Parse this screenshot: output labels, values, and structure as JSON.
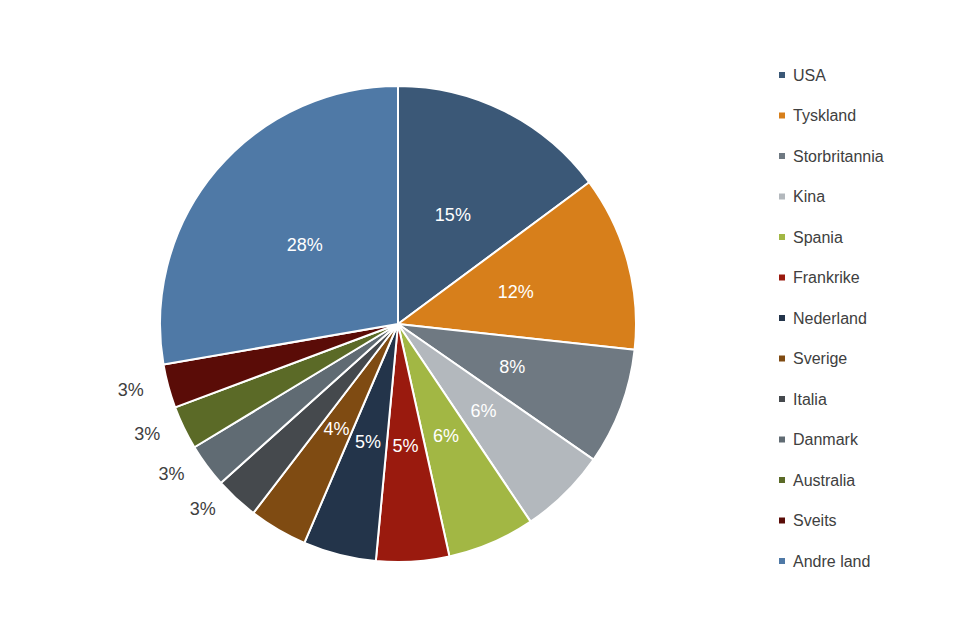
{
  "chart_data": {
    "type": "pie",
    "categories": [
      "USA",
      "Tyskland",
      "Storbritannia",
      "Kina",
      "Spania",
      "Frankrike",
      "Nederland",
      "Sverige",
      "Italia",
      "Danmark",
      "Australia",
      "Sveits",
      "Andre land"
    ],
    "values": [
      15,
      12,
      8,
      6,
      6,
      5,
      5,
      4,
      3,
      3,
      3,
      3,
      28
    ],
    "value_labels": [
      "15%",
      "12%",
      "8%",
      "6%",
      "6%",
      "5%",
      "5%",
      "4%",
      "3%",
      "3%",
      "3%",
      "3%",
      "28%"
    ],
    "colors": [
      "#3b5877",
      "#d77f1b",
      "#6f7982",
      "#b3b8bd",
      "#a2b744",
      "#9a1a0e",
      "#23344a",
      "#7f4b12",
      "#45494d",
      "#606b73",
      "#5b6a27",
      "#5a0c07",
      "#4f79a6"
    ],
    "legend": "right",
    "data_labels": true
  }
}
